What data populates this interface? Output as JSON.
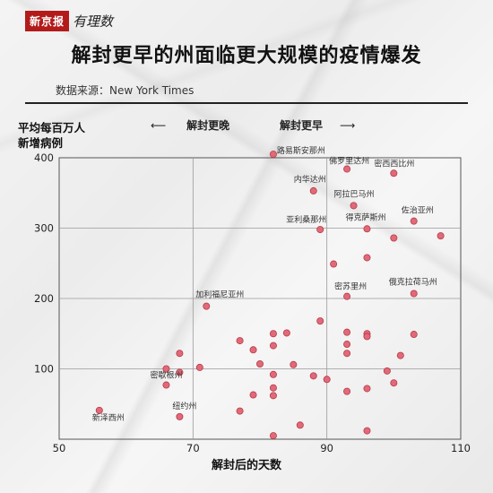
{
  "brand": {
    "name": "新京报",
    "sub": "有理数"
  },
  "colors": {
    "point_fill": "#e06a78",
    "point_stroke": "#b83a4a",
    "grid": "#9a9a9a",
    "frame": "#555555"
  },
  "chart_data": {
    "type": "scatter",
    "title": "解封更早的州面临更大规模的疫情爆发",
    "source": "数据来源：New York Times",
    "ylabel_lines": [
      "平均每百万人",
      "新增病例"
    ],
    "xlabel": "解封后的天数",
    "annotations": {
      "left": "解封更晚",
      "right": "解封更早"
    },
    "xlim": [
      50,
      110
    ],
    "ylim": [
      0,
      400
    ],
    "xticks": [
      50,
      70,
      90,
      110
    ],
    "yticks": [
      100,
      200,
      300,
      400
    ],
    "grid": true,
    "points": [
      {
        "x": 82,
        "y": 405,
        "label": "路易斯安那州"
      },
      {
        "x": 93,
        "y": 384,
        "label": "佛罗里达州"
      },
      {
        "x": 100,
        "y": 378,
        "label": "密西西比州"
      },
      {
        "x": 88,
        "y": 353,
        "label": "内华达州"
      },
      {
        "x": 94,
        "y": 332,
        "label": "阿拉巴马州"
      },
      {
        "x": 103,
        "y": 310,
        "label": "佐治亚州"
      },
      {
        "x": 89,
        "y": 298,
        "label": "亚利桑那州"
      },
      {
        "x": 96,
        "y": 299,
        "label": "得克萨斯州"
      },
      {
        "x": 100,
        "y": 286
      },
      {
        "x": 107,
        "y": 289
      },
      {
        "x": 96,
        "y": 258
      },
      {
        "x": 91,
        "y": 249
      },
      {
        "x": 103,
        "y": 207,
        "label": "俄克拉荷马州"
      },
      {
        "x": 93,
        "y": 203,
        "label": "密苏里州"
      },
      {
        "x": 72,
        "y": 189,
        "label": "加利福尼亚州"
      },
      {
        "x": 89,
        "y": 168
      },
      {
        "x": 82,
        "y": 150
      },
      {
        "x": 84,
        "y": 151
      },
      {
        "x": 93,
        "y": 152
      },
      {
        "x": 96,
        "y": 150
      },
      {
        "x": 96,
        "y": 146
      },
      {
        "x": 103,
        "y": 149
      },
      {
        "x": 77,
        "y": 140
      },
      {
        "x": 82,
        "y": 133
      },
      {
        "x": 93,
        "y": 135
      },
      {
        "x": 68,
        "y": 122
      },
      {
        "x": 79,
        "y": 127
      },
      {
        "x": 93,
        "y": 122
      },
      {
        "x": 101,
        "y": 119
      },
      {
        "x": 80,
        "y": 107
      },
      {
        "x": 85,
        "y": 106
      },
      {
        "x": 71,
        "y": 102
      },
      {
        "x": 66,
        "y": 100
      },
      {
        "x": 68,
        "y": 95
      },
      {
        "x": 82,
        "y": 92
      },
      {
        "x": 88,
        "y": 90
      },
      {
        "x": 90,
        "y": 85
      },
      {
        "x": 99,
        "y": 97
      },
      {
        "x": 66,
        "y": 77,
        "label": "密歇根州"
      },
      {
        "x": 82,
        "y": 73
      },
      {
        "x": 100,
        "y": 80
      },
      {
        "x": 79,
        "y": 63
      },
      {
        "x": 82,
        "y": 62
      },
      {
        "x": 93,
        "y": 68
      },
      {
        "x": 96,
        "y": 72
      },
      {
        "x": 56,
        "y": 41,
        "label": "新泽西州"
      },
      {
        "x": 77,
        "y": 40
      },
      {
        "x": 68,
        "y": 32,
        "label": "纽约州"
      },
      {
        "x": 86,
        "y": 20
      },
      {
        "x": 96,
        "y": 12
      },
      {
        "x": 82,
        "y": 5
      }
    ]
  }
}
